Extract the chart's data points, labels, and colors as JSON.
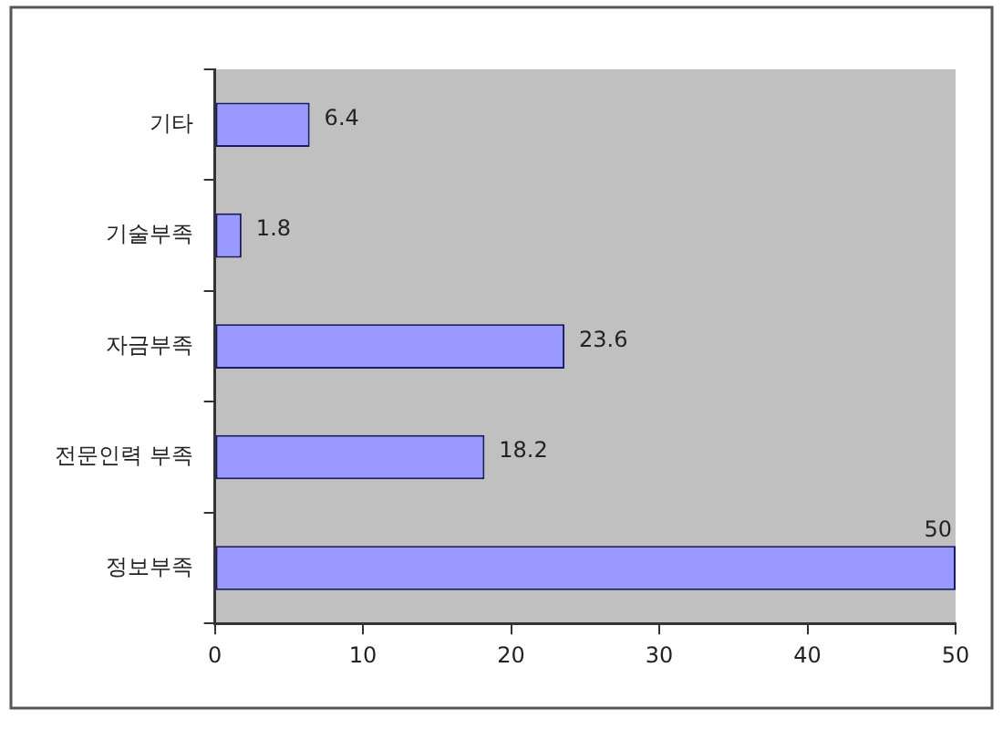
{
  "chart_data": {
    "type": "bar",
    "orientation": "horizontal",
    "categories": [
      "기타",
      "기술부족",
      "자금부족",
      "전문인력 부족",
      "정보부족"
    ],
    "values": [
      6.4,
      1.8,
      23.6,
      18.2,
      50
    ],
    "color": "#9999ff",
    "xlim": [
      0,
      50
    ],
    "xticks": [
      0,
      10,
      20,
      30,
      40,
      50
    ],
    "data_labels": true
  }
}
